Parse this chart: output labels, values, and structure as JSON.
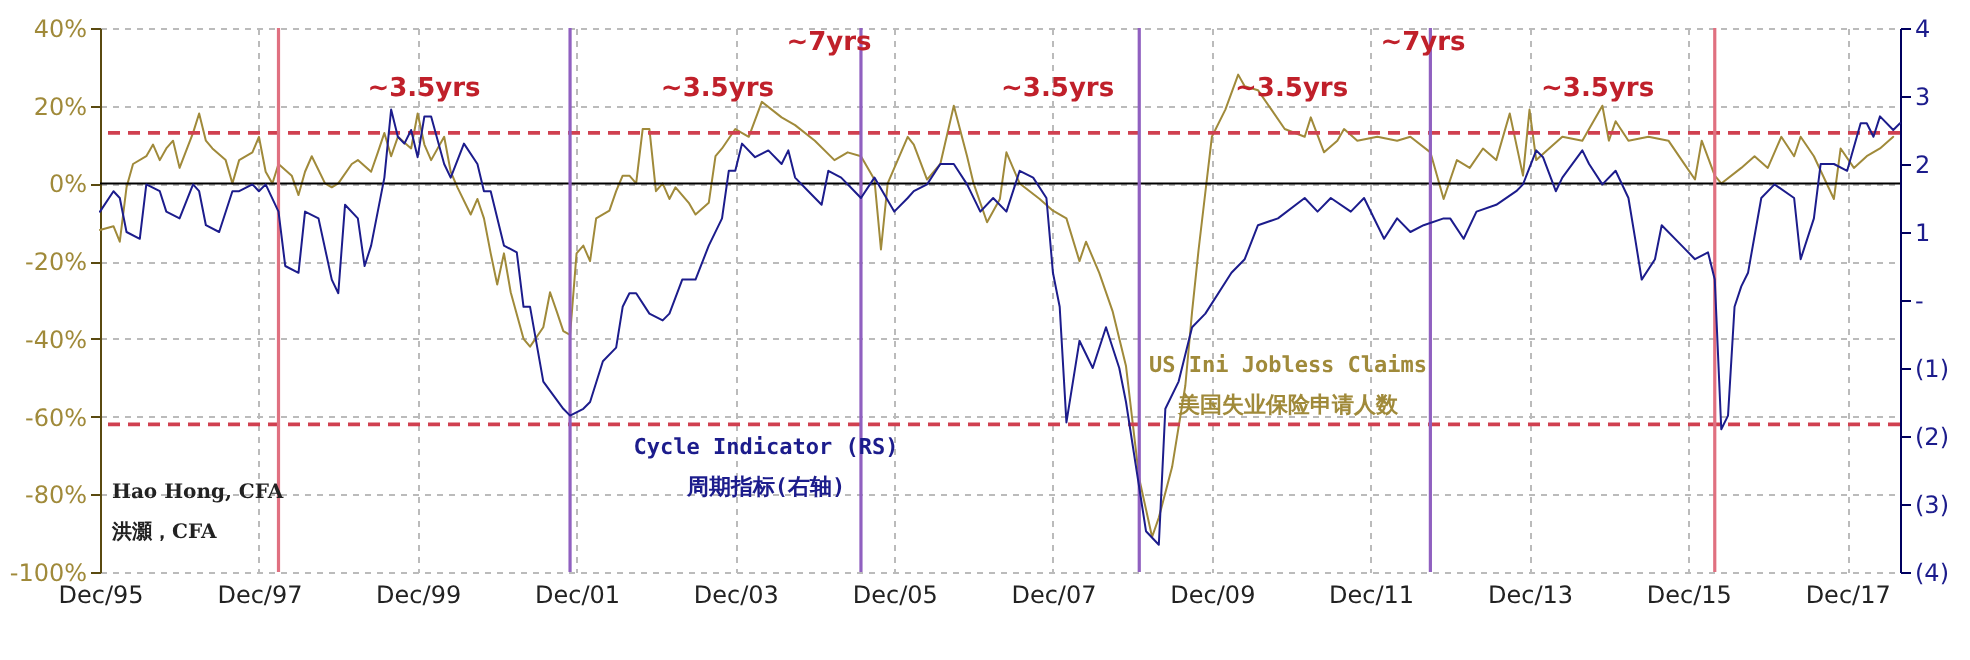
{
  "chart_data": {
    "type": "line",
    "xlim": [
      "1995-12",
      "2018-08"
    ],
    "xticks": [
      {
        "value": "1995-12",
        "label": "Dec/95"
      },
      {
        "value": "1997-12",
        "label": "Dec/97"
      },
      {
        "value": "1999-12",
        "label": "Dec/99"
      },
      {
        "value": "2001-12",
        "label": "Dec/01"
      },
      {
        "value": "2003-12",
        "label": "Dec/03"
      },
      {
        "value": "2005-12",
        "label": "Dec/05"
      },
      {
        "value": "2007-12",
        "label": "Dec/07"
      },
      {
        "value": "2009-12",
        "label": "Dec/09"
      },
      {
        "value": "2011-12",
        "label": "Dec/11"
      },
      {
        "value": "2013-12",
        "label": "Dec/13"
      },
      {
        "value": "2015-12",
        "label": "Dec/15"
      },
      {
        "value": "2017-12",
        "label": "Dec/17"
      }
    ],
    "ylim": [
      -100,
      40
    ],
    "yticks": [
      {
        "value": -100,
        "label": "-100%"
      },
      {
        "value": -80,
        "label": "-80%"
      },
      {
        "value": -60,
        "label": "-60%"
      },
      {
        "value": -40,
        "label": "-40%"
      },
      {
        "value": -20,
        "label": "-20%"
      },
      {
        "value": 0,
        "label": "0%"
      },
      {
        "value": 20,
        "label": "20%"
      },
      {
        "value": 40,
        "label": "40%"
      }
    ],
    "y2lim": [
      -4,
      4
    ],
    "y2ticks": [
      {
        "value": -4,
        "label": "(4)"
      },
      {
        "value": -3,
        "label": "(3)"
      },
      {
        "value": -2,
        "label": "(2)"
      },
      {
        "value": -1,
        "label": "(1)"
      },
      {
        "value": 0,
        "label": "-"
      },
      {
        "value": 1,
        "label": "1"
      },
      {
        "value": 2,
        "label": "2"
      },
      {
        "value": 3,
        "label": "3"
      },
      {
        "value": 4,
        "label": "4"
      }
    ],
    "grid": true,
    "series": [
      {
        "name": "US Ini Jobless Claims\n美国失业保险申请人数",
        "color": "#a08a3a",
        "x": [
          "1995-12",
          "1996-02",
          "1996-03",
          "1996-04",
          "1996-05",
          "1996-07",
          "1996-08",
          "1996-09",
          "1996-10",
          "1996-11",
          "1996-12",
          "1997-02",
          "1997-03",
          "1997-04",
          "1997-05",
          "1997-07",
          "1997-08",
          "1997-09",
          "1997-11",
          "1997-12",
          "1998-01",
          "1998-02",
          "1998-03",
          "1998-05",
          "1998-06",
          "1998-07",
          "1998-08",
          "1998-10",
          "1998-11",
          "1998-12",
          "1999-02",
          "1999-03",
          "1999-05",
          "1999-06",
          "1999-07",
          "1999-08",
          "1999-09",
          "1999-11",
          "1999-12",
          "2000-01",
          "2000-02",
          "2000-04",
          "2000-05",
          "2000-06",
          "2000-08",
          "2000-09",
          "2000-10",
          "2000-11",
          "2000-12",
          "2001-01",
          "2001-02",
          "2001-04",
          "2001-05",
          "2001-07",
          "2001-08",
          "2001-09",
          "2001-10",
          "2001-11",
          "2001-12",
          "2002-01",
          "2002-02",
          "2002-03",
          "2002-05",
          "2002-06",
          "2002-07",
          "2002-08",
          "2002-09",
          "2002-10",
          "2002-11",
          "2002-12",
          "2003-01",
          "2003-02",
          "2003-03",
          "2003-05",
          "2003-06",
          "2003-08",
          "2003-09",
          "2003-10",
          "2003-12",
          "2004-02",
          "2004-04",
          "2004-07",
          "2004-09",
          "2004-12",
          "2005-03",
          "2005-05",
          "2005-07",
          "2005-09",
          "2005-10",
          "2005-11",
          "2006-02",
          "2006-03",
          "2006-05",
          "2006-07",
          "2006-09",
          "2006-11",
          "2006-12",
          "2007-02",
          "2007-04",
          "2007-05",
          "2007-07",
          "2007-10",
          "2007-12",
          "2008-02",
          "2008-04",
          "2008-05",
          "2008-07",
          "2008-09",
          "2008-11",
          "2009-01",
          "2009-03",
          "2009-04",
          "2009-06",
          "2009-08",
          "2009-09",
          "2009-10",
          "2009-12",
          "2010-02",
          "2010-04",
          "2010-05",
          "2010-07",
          "2010-09",
          "2010-11",
          "2011-02",
          "2011-03",
          "2011-05",
          "2011-07",
          "2011-08",
          "2011-10",
          "2012-01",
          "2012-04",
          "2012-06",
          "2012-09",
          "2012-11",
          "2013-01",
          "2013-03",
          "2013-05",
          "2013-07",
          "2013-09",
          "2013-11",
          "2013-12",
          "2014-01",
          "2014-03",
          "2014-05",
          "2014-08",
          "2014-11",
          "2014-12",
          "2015-01",
          "2015-03",
          "2015-06",
          "2015-09",
          "2015-11",
          "2016-01",
          "2016-02",
          "2016-04",
          "2016-05",
          "2016-08",
          "2016-10",
          "2016-12",
          "2017-02",
          "2017-04",
          "2017-05",
          "2017-07",
          "2017-10",
          "2017-11",
          "2018-01",
          "2018-03",
          "2018-05",
          "2018-07"
        ],
        "values": [
          -12,
          -11,
          -15,
          -1,
          5,
          7,
          10,
          6,
          9,
          11,
          4,
          13,
          18,
          11,
          9,
          6,
          0,
          6,
          8,
          12,
          3,
          0,
          5,
          2,
          -3,
          3,
          7,
          0,
          -1,
          0,
          5,
          6,
          3,
          8,
          13,
          7,
          12,
          9,
          18,
          10,
          6,
          12,
          3,
          -1,
          -8,
          -4,
          -9,
          -18,
          -26,
          -18,
          -28,
          -40,
          -42,
          -37,
          -28,
          -33,
          -38,
          -39,
          -18,
          -16,
          -20,
          -9,
          -7,
          -2,
          2,
          2,
          0,
          14,
          14,
          -2,
          0,
          -4,
          -1,
          -5,
          -8,
          -5,
          7,
          9,
          14,
          12,
          21,
          17,
          15,
          11,
          6,
          8,
          7,
          1,
          -17,
          0,
          12,
          10,
          1,
          5,
          20,
          7,
          0,
          -10,
          -4,
          8,
          0,
          -4,
          -7,
          -9,
          -20,
          -15,
          -23,
          -33,
          -47,
          -76,
          -91,
          -86,
          -73,
          -52,
          -33,
          -17,
          12,
          19,
          28,
          25,
          24,
          19,
          14,
          12,
          17,
          8,
          11,
          14,
          11,
          12,
          11,
          12,
          8,
          -4,
          6,
          4,
          9,
          6,
          18,
          2,
          19,
          6,
          9,
          12,
          11,
          20,
          11,
          16,
          11,
          12,
          11,
          6,
          1,
          11,
          2,
          0,
          4,
          7,
          4,
          12,
          7,
          12,
          7,
          -4,
          9,
          4,
          7,
          9,
          12
        ]
      },
      {
        "name": "Cycle Indicator (RS)\n周期指标(右轴)",
        "color": "#1c1c8c",
        "axis": "y2",
        "x": [
          "1995-12",
          "1996-02",
          "1996-03",
          "1996-04",
          "1996-06",
          "1996-07",
          "1996-09",
          "1996-10",
          "1996-12",
          "1997-02",
          "1997-03",
          "1997-04",
          "1997-06",
          "1997-08",
          "1997-09",
          "1997-11",
          "1997-12",
          "1998-01",
          "1998-03",
          "1998-04",
          "1998-06",
          "1998-07",
          "1998-09",
          "1998-11",
          "1998-12",
          "1999-01",
          "1999-03",
          "1999-04",
          "1999-05",
          "1999-07",
          "1999-08",
          "1999-09",
          "1999-10",
          "1999-11",
          "1999-12",
          "2000-01",
          "2000-02",
          "2000-04",
          "2000-05",
          "2000-07",
          "2000-09",
          "2000-10",
          "2000-11",
          "2001-01",
          "2001-03",
          "2001-04",
          "2001-05",
          "2001-07",
          "2001-10",
          "2001-11",
          "2002-01",
          "2002-02",
          "2002-04",
          "2002-06",
          "2002-07",
          "2002-08",
          "2002-09",
          "2002-11",
          "2003-01",
          "2003-02",
          "2003-04",
          "2003-06",
          "2003-08",
          "2003-10",
          "2003-11",
          "2003-12",
          "2004-01",
          "2004-03",
          "2004-05",
          "2004-07",
          "2004-08",
          "2004-09",
          "2004-11",
          "2005-01",
          "2005-02",
          "2005-04",
          "2005-06",
          "2005-07",
          "2005-09",
          "2005-12",
          "2006-02",
          "2006-03",
          "2006-05",
          "2006-07",
          "2006-09",
          "2006-11",
          "2007-01",
          "2007-03",
          "2007-05",
          "2007-07",
          "2007-09",
          "2007-11",
          "2007-12",
          "2008-01",
          "2008-02",
          "2008-04",
          "2008-06",
          "2008-08",
          "2008-10",
          "2008-11",
          "2009-02",
          "2009-04",
          "2009-05",
          "2009-07",
          "2009-09",
          "2009-11",
          "2010-03",
          "2010-05",
          "2010-07",
          "2010-10",
          "2011-02",
          "2011-04",
          "2011-06",
          "2011-09",
          "2011-11",
          "2012-02",
          "2012-04",
          "2012-06",
          "2012-08",
          "2012-11",
          "2012-12",
          "2013-02",
          "2013-04",
          "2013-07",
          "2013-10",
          "2013-11",
          "2014-01",
          "2014-02",
          "2014-04",
          "2014-05",
          "2014-08",
          "2014-09",
          "2014-11",
          "2015-01",
          "2015-03",
          "2015-04",
          "2015-05",
          "2015-07",
          "2015-08",
          "2015-11",
          "2016-01",
          "2016-03",
          "2016-04",
          "2016-05",
          "2016-06",
          "2016-07",
          "2016-08",
          "2016-09",
          "2016-11",
          "2017-01",
          "2017-04",
          "2017-05",
          "2017-07",
          "2017-08",
          "2017-10",
          "2017-12",
          "2018-02",
          "2018-03",
          "2018-04",
          "2018-05",
          "2018-07",
          "2018-08"
        ],
        "values": [
          1.3,
          1.6,
          1.5,
          1.0,
          0.9,
          1.7,
          1.6,
          1.3,
          1.2,
          1.7,
          1.6,
          1.1,
          1.0,
          1.6,
          1.6,
          1.7,
          1.6,
          1.7,
          1.3,
          0.5,
          0.4,
          1.3,
          1.2,
          0.3,
          0.1,
          1.4,
          1.2,
          0.5,
          0.8,
          1.8,
          2.8,
          2.4,
          2.3,
          2.5,
          2.1,
          2.7,
          2.7,
          2.0,
          1.8,
          2.3,
          2.0,
          1.6,
          1.6,
          0.8,
          0.7,
          -0.1,
          -0.1,
          -1.2,
          -1.6,
          -1.7,
          -1.6,
          -1.5,
          -0.9,
          -0.7,
          -0.1,
          0.1,
          0.1,
          -0.2,
          -0.3,
          -0.2,
          0.3,
          0.3,
          0.8,
          1.2,
          1.9,
          1.9,
          2.3,
          2.1,
          2.2,
          2.0,
          2.2,
          1.8,
          1.6,
          1.4,
          1.9,
          1.8,
          1.6,
          1.5,
          1.8,
          1.3,
          1.5,
          1.6,
          1.7,
          2.0,
          2.0,
          1.7,
          1.3,
          1.5,
          1.3,
          1.9,
          1.8,
          1.5,
          0.4,
          -0.1,
          -1.8,
          -0.6,
          -1.0,
          -0.4,
          -1.0,
          -1.5,
          -3.4,
          -3.6,
          -1.6,
          -1.2,
          -0.4,
          -0.2,
          0.4,
          0.6,
          1.1,
          1.2,
          1.5,
          1.3,
          1.5,
          1.3,
          1.5,
          0.9,
          1.2,
          1.0,
          1.1,
          1.2,
          1.2,
          0.9,
          1.3,
          1.4,
          1.6,
          1.7,
          2.2,
          2.1,
          1.6,
          1.8,
          2.2,
          2.0,
          1.7,
          1.9,
          1.5,
          0.9,
          0.3,
          0.6,
          1.1,
          0.8,
          0.6,
          0.7,
          0.3,
          -1.9,
          -1.7,
          -0.1,
          0.2,
          0.4,
          1.5,
          1.7,
          1.5,
          0.6,
          1.2,
          2.0,
          2.0,
          1.9,
          2.6,
          2.6,
          2.4,
          2.7,
          2.5,
          2.6
        ]
      }
    ],
    "ref_lines": [
      {
        "axis": "y",
        "value": 0,
        "color": "#000000",
        "line_style": "solid"
      },
      {
        "axis": "y",
        "value": 13,
        "color": "#d04050",
        "line_style": "dashed"
      },
      {
        "axis": "y",
        "value": -62,
        "color": "#d04050",
        "line_style": "dashed"
      },
      {
        "axis": "x",
        "value": "1998-03",
        "color": "#e07080",
        "line_style": "solid"
      },
      {
        "axis": "x",
        "value": "2001-11",
        "color": "#9060c0",
        "line_style": "solid"
      },
      {
        "axis": "x",
        "value": "2005-07",
        "color": "#9060c0",
        "line_style": "solid"
      },
      {
        "axis": "x",
        "value": "2009-01",
        "color": "#9060c0",
        "line_style": "solid"
      },
      {
        "axis": "x",
        "value": "2012-09",
        "color": "#9060c0",
        "line_style": "solid"
      },
      {
        "axis": "x",
        "value": "2016-04",
        "color": "#e07080",
        "line_style": "solid"
      }
    ],
    "annotations": [
      "~3.5yrs",
      "~3.5yrs",
      "~7yrs",
      "~3.5yrs",
      "~3.5yrs",
      "~7yrs",
      "~3.5yrs",
      "Hao Hong, CFA",
      "洪灝，CFA"
    ]
  }
}
